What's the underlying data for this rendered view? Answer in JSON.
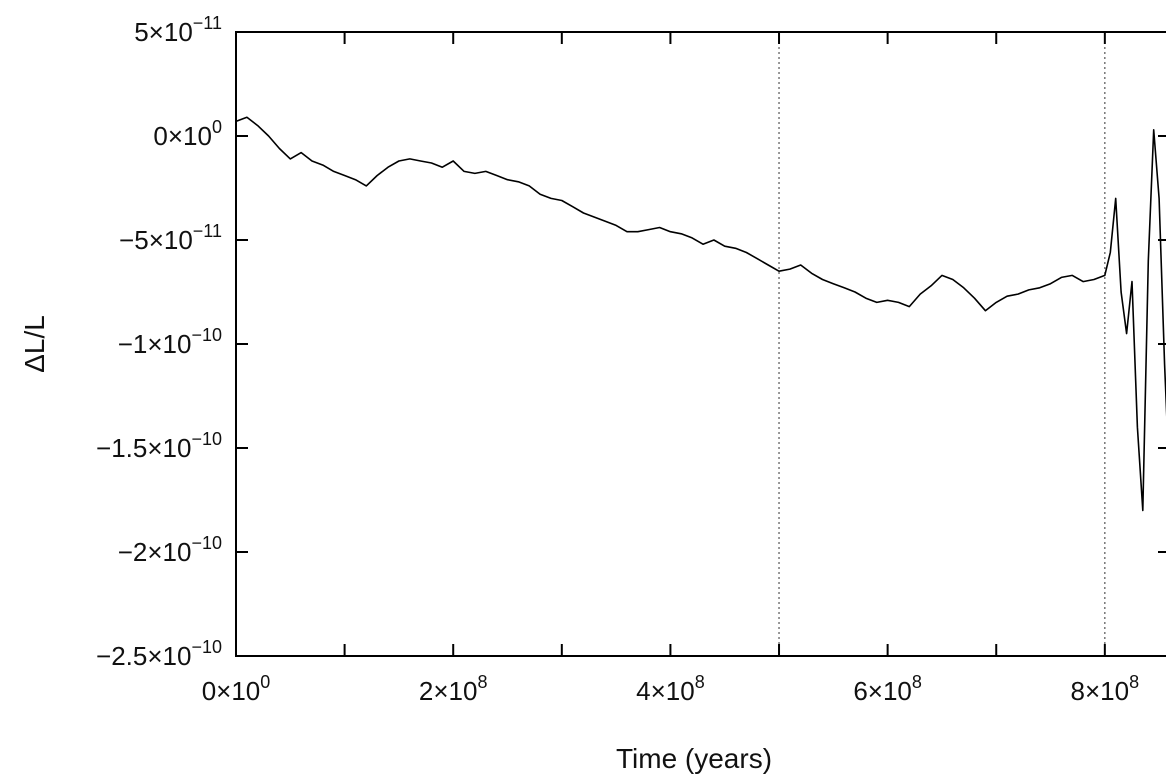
{
  "chart_data": {
    "type": "line",
    "title": "",
    "xlabel": "Time (years)",
    "ylabel": "ΔL/L",
    "xlim": [
      0,
      860000000
    ],
    "ylim": [
      -2.5e-10,
      5e-11
    ],
    "grid": false,
    "x_ticks": [
      {
        "value": 0,
        "label": "0×10",
        "exp": "0"
      },
      {
        "value": 200000000,
        "label": "2×10",
        "exp": "8"
      },
      {
        "value": 400000000,
        "label": "4×10",
        "exp": "8"
      },
      {
        "value": 600000000,
        "label": "6×10",
        "exp": "8"
      },
      {
        "value": 800000000,
        "label": "8×10",
        "exp": "8"
      }
    ],
    "x_minor_ticks": [
      100000000,
      300000000,
      500000000,
      700000000
    ],
    "y_ticks": [
      {
        "value": 5e-11,
        "label": "5×10",
        "exp": "−11"
      },
      {
        "value": 0,
        "label": "0×10",
        "exp": "0"
      },
      {
        "value": -5e-11,
        "label": "−5×10",
        "exp": "−11"
      },
      {
        "value": -1e-10,
        "label": "−1×10",
        "exp": "−10"
      },
      {
        "value": -1.5e-10,
        "label": "−1.5×10",
        "exp": "−10"
      },
      {
        "value": -2e-10,
        "label": "−2×10",
        "exp": "−10"
      },
      {
        "value": -2.5e-10,
        "label": "−2.5×10",
        "exp": "−10"
      }
    ],
    "vertical_dotted_lines": [
      500000000,
      800000000
    ],
    "series": [
      {
        "x": [
          0,
          10000000,
          20000000,
          30000000,
          40000000,
          50000000,
          60000000,
          70000000,
          80000000,
          90000000,
          100000000,
          110000000,
          120000000,
          130000000,
          140000000,
          150000000,
          160000000,
          170000000,
          180000000,
          190000000,
          200000000,
          210000000,
          220000000,
          230000000,
          240000000,
          250000000,
          260000000,
          270000000,
          280000000,
          290000000,
          300000000,
          310000000,
          320000000,
          330000000,
          340000000,
          350000000,
          360000000,
          370000000,
          380000000,
          390000000,
          400000000,
          410000000,
          420000000,
          430000000,
          440000000,
          450000000,
          460000000,
          470000000,
          480000000,
          490000000,
          500000000,
          510000000,
          520000000,
          530000000,
          540000000,
          550000000,
          560000000,
          570000000,
          580000000,
          590000000,
          600000000,
          610000000,
          620000000,
          630000000,
          640000000,
          650000000,
          660000000,
          670000000,
          680000000,
          690000000,
          700000000,
          710000000,
          720000000,
          730000000,
          740000000,
          750000000,
          760000000,
          770000000,
          780000000,
          790000000,
          800000000,
          805000000,
          810000000,
          815000000,
          820000000,
          825000000,
          830000000,
          835000000,
          840000000,
          845000000,
          850000000,
          855000000,
          860000000
        ],
        "y": [
          7e-12,
          9e-12,
          5e-12,
          0.0,
          -6e-12,
          -1.1e-11,
          -8e-12,
          -1.2e-11,
          -1.4e-11,
          -1.7e-11,
          -1.9e-11,
          -2.1e-11,
          -2.4e-11,
          -1.9e-11,
          -1.5e-11,
          -1.2e-11,
          -1.1e-11,
          -1.2e-11,
          -1.3e-11,
          -1.5e-11,
          -1.2e-11,
          -1.7e-11,
          -1.8e-11,
          -1.7e-11,
          -1.9e-11,
          -2.1e-11,
          -2.2e-11,
          -2.4e-11,
          -2.8e-11,
          -3e-11,
          -3.1e-11,
          -3.4e-11,
          -3.7e-11,
          -3.9e-11,
          -4.1e-11,
          -4.3e-11,
          -4.6e-11,
          -4.6e-11,
          -4.5e-11,
          -4.4e-11,
          -4.6e-11,
          -4.7e-11,
          -4.9e-11,
          -5.2e-11,
          -5e-11,
          -5.3e-11,
          -5.4e-11,
          -5.6e-11,
          -5.9e-11,
          -6.2e-11,
          -6.5e-11,
          -6.4e-11,
          -6.2e-11,
          -6.6e-11,
          -6.9e-11,
          -7.1e-11,
          -7.3e-11,
          -7.5e-11,
          -7.8e-11,
          -8e-11,
          -7.9e-11,
          -8e-11,
          -8.2e-11,
          -7.6e-11,
          -7.2e-11,
          -6.7e-11,
          -6.9e-11,
          -7.3e-11,
          -7.8e-11,
          -8.4e-11,
          -8e-11,
          -7.7e-11,
          -7.6e-11,
          -7.4e-11,
          -7.3e-11,
          -7.1e-11,
          -6.8e-11,
          -6.7e-11,
          -7e-11,
          -6.9e-11,
          -6.7e-11,
          -5.6e-11,
          -3e-11,
          -7.5e-11,
          -9.5e-11,
          -7e-11,
          -1.4e-10,
          -1.8e-10,
          -6e-11,
          3e-12,
          -3e-11,
          -1.1e-10,
          -1.6e-10
        ]
      }
    ]
  }
}
